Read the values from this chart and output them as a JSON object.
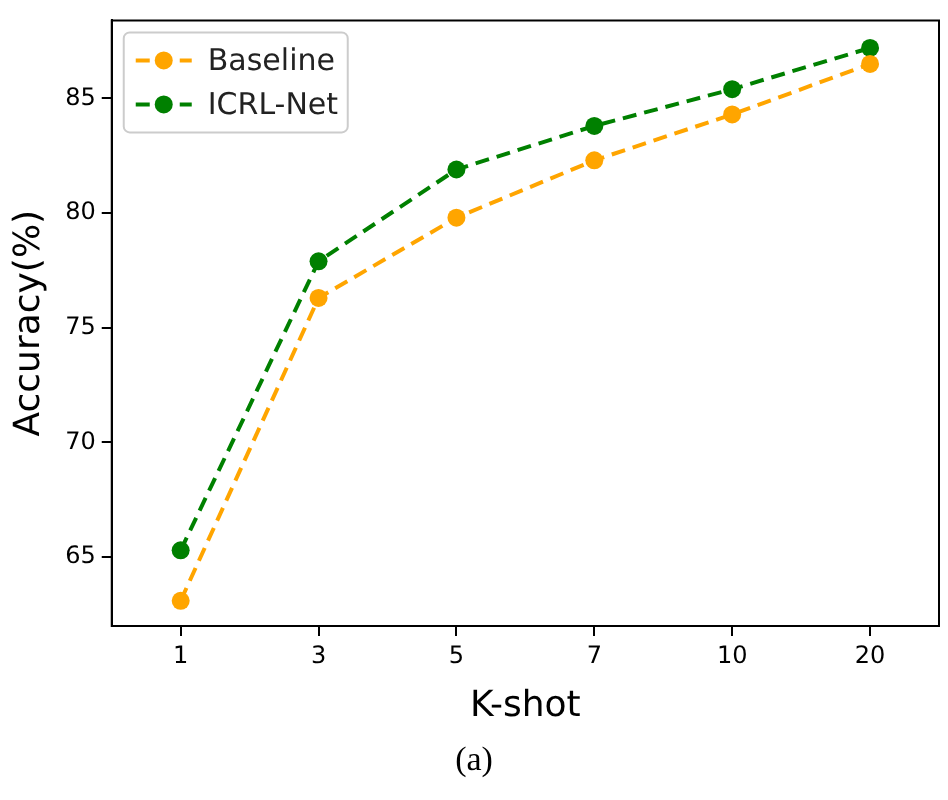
{
  "chart_data": {
    "type": "line",
    "xlabel": "K-shot",
    "ylabel": "Accuracy(%)",
    "categories": [
      "1",
      "3",
      "5",
      "7",
      "10",
      "20"
    ],
    "series": [
      {
        "name": "Baseline",
        "color": "#ffa500",
        "values": [
          63.1,
          76.3,
          79.8,
          82.3,
          84.3,
          86.5
        ]
      },
      {
        "name": "ICRL-Net",
        "color": "#008000",
        "values": [
          65.3,
          77.9,
          81.9,
          83.8,
          85.4,
          87.2
        ]
      }
    ],
    "ylim": [
      62,
      88.4
    ],
    "yticks": [
      65,
      70,
      75,
      80,
      85
    ],
    "marker": "circle",
    "line_style": "dashed",
    "legend": "top left",
    "grid": false,
    "annotations": [
      "(a)"
    ]
  }
}
